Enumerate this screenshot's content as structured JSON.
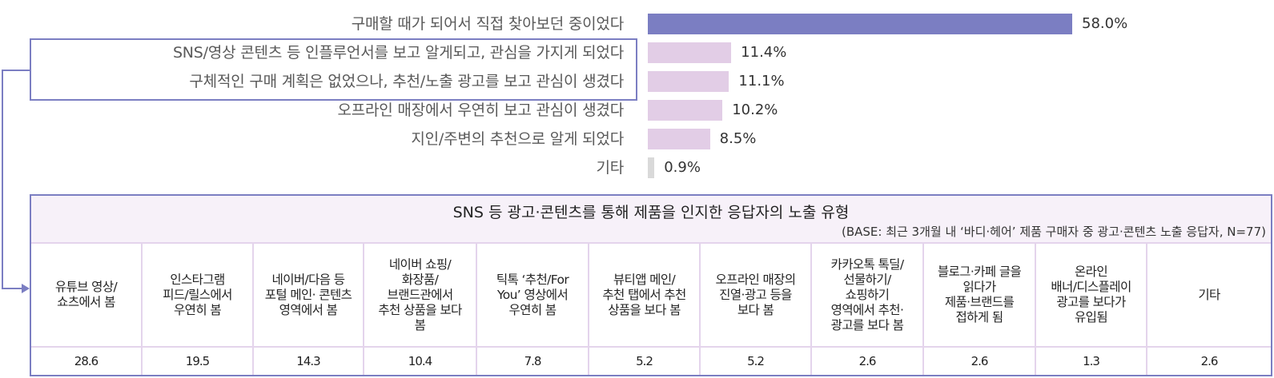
{
  "chart_data": [
    {
      "type": "bar",
      "orientation": "horizontal",
      "categories": [
        "구매할 때가 되어서 직접 찾아보던 중이었다",
        "SNS/영상 콘텐츠 등 인플루언서를 보고 알게되고, 관심을 가지게 되었다",
        "구체적인 구매 계획은 없었으나, 추천/노출 광고를 보고 관심이 생겼다",
        "오프라인 매장에서 우연히 보고 관심이 생겼다",
        "지인/주변의 추천으로 알게 되었다",
        "기타"
      ],
      "values": [
        58.0,
        11.4,
        11.1,
        10.2,
        8.5,
        0.9
      ],
      "value_labels": [
        "58.0%",
        "11.4%",
        "11.1%",
        "10.2%",
        "8.5%",
        "0.9%"
      ],
      "bar_colors": [
        "#7b7ec2",
        "#e2cde6",
        "#e2cde6",
        "#e2cde6",
        "#e2cde6",
        "#d9d9d9"
      ],
      "highlighted_categories": [
        1,
        2
      ],
      "unit": "%",
      "title": "",
      "xlabel": "",
      "ylabel": "",
      "grid": false
    },
    {
      "type": "table",
      "title": "SNS 등 광고·콘텐츠를 통해 제품을 인지한 응답자의 노출 유형",
      "subtitle": "(BASE: 최근 3개월 내 ‘바디·헤어’ 제품 구매자 중 광고·콘텐츠 노출 응답자, N=77)",
      "categories": [
        "유튜브 영상/ 쇼츠에서 봄",
        "인스타그램 피드/릴스에서 우연히 봄",
        "네이버/다음 등 포털 메인· 콘텐츠 영역에서 봄",
        "네이버 쇼핑/ 화장품/ 브랜드관에서 추천 상품을 보다 봄",
        "틱톡 ‘추천/For You’ 영상에서 우연히 봄",
        "뷰티앱 메인/ 추천 탭에서 추천 상품을 보다 봄",
        "오프라인 매장의 진열·광고 등을 보다 봄",
        "카카오톡 톡딜/ 선물하기/ 쇼핑하기 영역에서 추천·광고를 보다 봄",
        "블로그·카페 글을 읽다가 제품·브랜드를 접하게 됨",
        "온라인 배너/디스플레이 광고를 보다가 유입됨",
        "기타"
      ],
      "values": [
        28.6,
        19.5,
        14.3,
        10.4,
        7.8,
        5.2,
        5.2,
        2.6,
        2.6,
        1.3,
        2.6
      ]
    }
  ],
  "bars": [
    {
      "label": "구매할 때가 되어서 직접 찾아보던 중이었다",
      "value": 58.0,
      "value_label": "58.0%",
      "color": "#7b7ec2"
    },
    {
      "label": "SNS/영상 콘텐츠 등 인플루언서를 보고 알게되고, 관심을 가지게 되었다",
      "value": 11.4,
      "value_label": "11.4%",
      "color": "#e2cde6"
    },
    {
      "label": "구체적인 구매 계획은 없었으나, 추천/노출 광고를 보고 관심이 생겼다",
      "value": 11.1,
      "value_label": "11.1%",
      "color": "#e2cde6"
    },
    {
      "label": "오프라인 매장에서 우연히 보고 관심이 생겼다",
      "value": 10.2,
      "value_label": "10.2%",
      "color": "#e2cde6"
    },
    {
      "label": "지인/주변의 추천으로 알게 되었다",
      "value": 8.5,
      "value_label": "8.5%",
      "color": "#e2cde6"
    },
    {
      "label": "기타",
      "value": 0.9,
      "value_label": "0.9%",
      "color": "#d9d9d9"
    }
  ],
  "panel": {
    "title": "SNS 등 광고·콘텐츠를 통해 제품을 인지한 응답자의 노출 유형",
    "base": "(BASE: 최근 3개월 내 ‘바디·헤어’ 제품 구매자 중 광고·콘텐츠 노출 응답자, N=77)",
    "columns": [
      {
        "header": "유튜브 영상/\n쇼츠에서 봄",
        "value": "28.6"
      },
      {
        "header": "인스타그램\n피드/릴스에서\n우연히 봄",
        "value": "19.5"
      },
      {
        "header": "네이버/다음 등\n포털 메인· 콘텐츠\n영역에서 봄",
        "value": "14.3"
      },
      {
        "header": "네이버 쇼핑/\n화장품/\n브랜드관에서\n추천 상품을 보다\n봄",
        "value": "10.4"
      },
      {
        "header": "틱톡 ‘추천/For\nYou’ 영상에서\n우연히 봄",
        "value": "7.8"
      },
      {
        "header": "뷰티앱 메인/\n추천 탭에서 추천\n상품을 보다 봄",
        "value": "5.2"
      },
      {
        "header": "오프라인 매장의\n진열·광고 등을\n보다 봄",
        "value": "5.2"
      },
      {
        "header": "카카오톡 톡딜/\n선물하기/\n쇼핑하기\n영역에서 추천·\n광고를 보다 봄",
        "value": "2.6"
      },
      {
        "header": "블로그·카페 글을\n읽다가\n제품·브랜드를\n접하게 됨",
        "value": "2.6"
      },
      {
        "header": "온라인\n배너/디스플레이\n광고를 보다가\n유입됨",
        "value": "1.3"
      },
      {
        "header": "기타",
        "value": "2.6"
      }
    ]
  },
  "colors": {
    "accent": "#7b7ec2",
    "highlight_bar": "#e2cde6",
    "other_bar": "#d9d9d9",
    "table_header_bg": "#f7f1f9",
    "table_grid": "#e4d4ec"
  }
}
